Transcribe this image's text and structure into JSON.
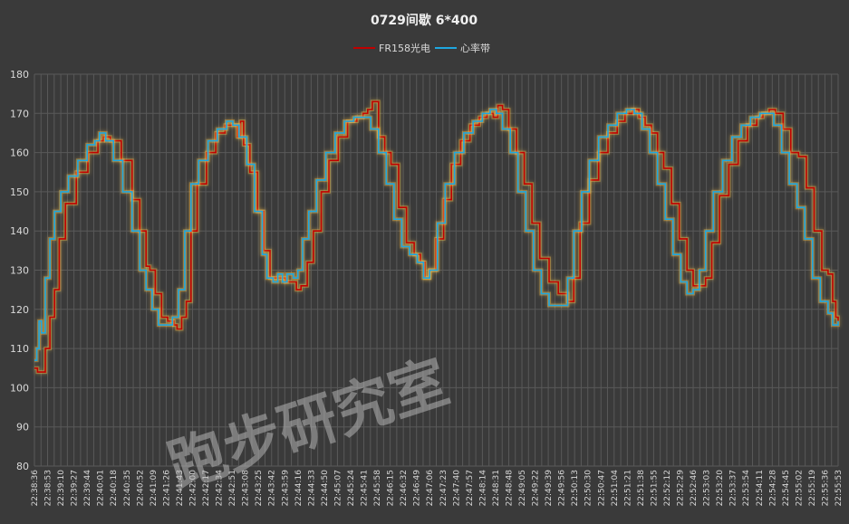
{
  "chart_data": {
    "type": "line",
    "title": "0729间歇 6*400",
    "xlabel": "",
    "ylabel": "",
    "ylim": [
      80,
      180
    ],
    "yticks": [
      80,
      90,
      100,
      110,
      120,
      130,
      140,
      150,
      160,
      170,
      180
    ],
    "grid": true,
    "legend_position": "top-center",
    "watermark": "跑步研究室",
    "x_start": "22:38:36",
    "x_end": "22:55:53",
    "x_tick_step_seconds": 17,
    "x_ticks": [
      "22:38:36",
      "22:38:53",
      "22:39:10",
      "22:39:27",
      "22:39:44",
      "22:40:01",
      "22:40:18",
      "22:40:35",
      "22:40:52",
      "22:41:09",
      "22:41:26",
      "22:41:43",
      "22:42:00",
      "22:42:17",
      "22:42:34",
      "22:42:51",
      "22:43:08",
      "22:43:25",
      "22:43:42",
      "22:43:59",
      "22:44:16",
      "22:44:33",
      "22:44:50",
      "22:45:07",
      "22:45:24",
      "22:45:41",
      "22:45:58",
      "22:46:15",
      "22:46:32",
      "22:46:49",
      "22:47:06",
      "22:47:23",
      "22:47:40",
      "22:47:57",
      "22:48:14",
      "22:48:31",
      "22:48:48",
      "22:49:05",
      "22:49:22",
      "22:49:39",
      "22:49:56",
      "22:50:13",
      "22:50:30",
      "22:50:47",
      "22:51:04",
      "22:51:21",
      "22:51:38",
      "22:51:55",
      "22:52:12",
      "22:52:29",
      "22:52:46",
      "22:53:03",
      "22:53:20",
      "22:53:37",
      "22:53:54",
      "22:54:11",
      "22:54:28",
      "22:54:45",
      "22:55:02",
      "22:55:19",
      "22:55:36",
      "22:55:53"
    ],
    "series": [
      {
        "name": "FR158光电",
        "color": "#c00000",
        "points": [
          [
            "22:38:36",
            105
          ],
          [
            "22:38:40",
            104
          ],
          [
            "22:38:46",
            104
          ],
          [
            "22:38:50",
            110
          ],
          [
            "22:38:56",
            118
          ],
          [
            "22:39:02",
            125
          ],
          [
            "22:39:08",
            138
          ],
          [
            "22:39:16",
            147
          ],
          [
            "22:39:30",
            155
          ],
          [
            "22:39:45",
            160
          ],
          [
            "22:39:58",
            163
          ],
          [
            "22:40:05",
            164
          ],
          [
            "22:40:14",
            163
          ],
          [
            "22:40:28",
            158
          ],
          [
            "22:40:42",
            148
          ],
          [
            "22:40:52",
            140
          ],
          [
            "22:41:00",
            131
          ],
          [
            "22:41:05",
            130
          ],
          [
            "22:41:12",
            124
          ],
          [
            "22:41:20",
            118
          ],
          [
            "22:41:28",
            117
          ],
          [
            "22:41:36",
            116
          ],
          [
            "22:41:40",
            115
          ],
          [
            "22:41:46",
            118
          ],
          [
            "22:41:52",
            122
          ],
          [
            "22:41:58",
            140
          ],
          [
            "22:42:06",
            152
          ],
          [
            "22:42:18",
            160
          ],
          [
            "22:42:30",
            165
          ],
          [
            "22:42:42",
            167
          ],
          [
            "22:42:52",
            167
          ],
          [
            "22:42:58",
            164
          ],
          [
            "22:43:02",
            168
          ],
          [
            "22:43:06",
            162
          ],
          [
            "22:43:14",
            155
          ],
          [
            "22:43:24",
            145
          ],
          [
            "22:43:32",
            135
          ],
          [
            "22:43:40",
            128
          ],
          [
            "22:43:50",
            128
          ],
          [
            "22:44:00",
            127
          ],
          [
            "22:44:08",
            127
          ],
          [
            "22:44:14",
            125
          ],
          [
            "22:44:20",
            126
          ],
          [
            "22:44:28",
            132
          ],
          [
            "22:44:36",
            140
          ],
          [
            "22:44:46",
            150
          ],
          [
            "22:44:56",
            158
          ],
          [
            "22:45:08",
            164
          ],
          [
            "22:45:20",
            168
          ],
          [
            "22:45:32",
            169
          ],
          [
            "22:45:40",
            170
          ],
          [
            "22:45:46",
            171
          ],
          [
            "22:45:52",
            173
          ],
          [
            "22:46:00",
            164
          ],
          [
            "22:46:08",
            160
          ],
          [
            "22:46:16",
            157
          ],
          [
            "22:46:26",
            146
          ],
          [
            "22:46:36",
            137
          ],
          [
            "22:46:46",
            134
          ],
          [
            "22:46:54",
            132
          ],
          [
            "22:47:00",
            128
          ],
          [
            "22:47:06",
            130
          ],
          [
            "22:47:14",
            138
          ],
          [
            "22:47:24",
            148
          ],
          [
            "22:47:34",
            157
          ],
          [
            "22:47:46",
            163
          ],
          [
            "22:47:58",
            167
          ],
          [
            "22:48:10",
            169
          ],
          [
            "22:48:20",
            170
          ],
          [
            "22:48:28",
            169
          ],
          [
            "22:48:34",
            172
          ],
          [
            "22:48:40",
            171
          ],
          [
            "22:48:48",
            166
          ],
          [
            "22:48:58",
            160
          ],
          [
            "22:49:08",
            152
          ],
          [
            "22:49:18",
            142
          ],
          [
            "22:49:28",
            133
          ],
          [
            "22:49:40",
            127
          ],
          [
            "22:49:52",
            124
          ],
          [
            "22:50:04",
            122
          ],
          [
            "22:50:12",
            128
          ],
          [
            "22:50:20",
            142
          ],
          [
            "22:50:32",
            153
          ],
          [
            "22:50:44",
            160
          ],
          [
            "22:50:56",
            165
          ],
          [
            "22:51:08",
            168
          ],
          [
            "22:51:18",
            170
          ],
          [
            "22:51:28",
            171
          ],
          [
            "22:51:36",
            169
          ],
          [
            "22:51:44",
            167
          ],
          [
            "22:51:52",
            165
          ],
          [
            "22:52:00",
            160
          ],
          [
            "22:52:08",
            156
          ],
          [
            "22:52:18",
            147
          ],
          [
            "22:52:28",
            138
          ],
          [
            "22:52:38",
            130
          ],
          [
            "22:52:46",
            126
          ],
          [
            "22:52:54",
            126
          ],
          [
            "22:53:02",
            128
          ],
          [
            "22:53:10",
            137
          ],
          [
            "22:53:20",
            149
          ],
          [
            "22:53:32",
            157
          ],
          [
            "22:53:44",
            163
          ],
          [
            "22:53:56",
            167
          ],
          [
            "22:54:08",
            169
          ],
          [
            "22:54:16",
            170
          ],
          [
            "22:54:24",
            171
          ],
          [
            "22:54:32",
            170
          ],
          [
            "22:54:42",
            166
          ],
          [
            "22:54:52",
            160
          ],
          [
            "22:55:02",
            159
          ],
          [
            "22:55:12",
            151
          ],
          [
            "22:55:22",
            140
          ],
          [
            "22:55:32",
            130
          ],
          [
            "22:55:40",
            129
          ],
          [
            "22:55:46",
            122
          ],
          [
            "22:55:50",
            118
          ],
          [
            "22:55:53",
            117
          ]
        ]
      },
      {
        "name": "心率带",
        "color": "#1ea7e0",
        "points": [
          [
            "22:38:36",
            107
          ],
          [
            "22:38:39",
            110
          ],
          [
            "22:38:42",
            117
          ],
          [
            "22:38:45",
            114
          ],
          [
            "22:38:50",
            128
          ],
          [
            "22:38:56",
            138
          ],
          [
            "22:39:02",
            145
          ],
          [
            "22:39:10",
            150
          ],
          [
            "22:39:20",
            154
          ],
          [
            "22:39:32",
            158
          ],
          [
            "22:39:44",
            162
          ],
          [
            "22:39:54",
            163
          ],
          [
            "22:40:00",
            165
          ],
          [
            "22:40:08",
            163
          ],
          [
            "22:40:18",
            158
          ],
          [
            "22:40:30",
            150
          ],
          [
            "22:40:42",
            140
          ],
          [
            "22:40:52",
            130
          ],
          [
            "22:41:00",
            125
          ],
          [
            "22:41:08",
            120
          ],
          [
            "22:41:16",
            116
          ],
          [
            "22:41:26",
            116
          ],
          [
            "22:41:34",
            118
          ],
          [
            "22:41:42",
            125
          ],
          [
            "22:41:50",
            140
          ],
          [
            "22:41:58",
            152
          ],
          [
            "22:42:08",
            158
          ],
          [
            "22:42:20",
            163
          ],
          [
            "22:42:32",
            166
          ],
          [
            "22:42:44",
            168
          ],
          [
            "22:42:52",
            167
          ],
          [
            "22:43:00",
            164
          ],
          [
            "22:43:10",
            157
          ],
          [
            "22:43:20",
            145
          ],
          [
            "22:43:30",
            134
          ],
          [
            "22:43:36",
            128
          ],
          [
            "22:43:44",
            127
          ],
          [
            "22:43:50",
            129
          ],
          [
            "22:43:56",
            127
          ],
          [
            "22:44:02",
            129
          ],
          [
            "22:44:10",
            128
          ],
          [
            "22:44:16",
            130
          ],
          [
            "22:44:22",
            138
          ],
          [
            "22:44:30",
            145
          ],
          [
            "22:44:40",
            153
          ],
          [
            "22:44:52",
            160
          ],
          [
            "22:45:04",
            165
          ],
          [
            "22:45:16",
            168
          ],
          [
            "22:45:28",
            169
          ],
          [
            "22:45:40",
            169
          ],
          [
            "22:45:50",
            166
          ],
          [
            "22:46:00",
            160
          ],
          [
            "22:46:10",
            152
          ],
          [
            "22:46:20",
            143
          ],
          [
            "22:46:30",
            136
          ],
          [
            "22:46:40",
            134
          ],
          [
            "22:46:50",
            132
          ],
          [
            "22:46:58",
            128
          ],
          [
            "22:47:06",
            130
          ],
          [
            "22:47:16",
            142
          ],
          [
            "22:47:26",
            152
          ],
          [
            "22:47:38",
            160
          ],
          [
            "22:47:50",
            165
          ],
          [
            "22:48:02",
            168
          ],
          [
            "22:48:14",
            170
          ],
          [
            "22:48:24",
            171
          ],
          [
            "22:48:32",
            170
          ],
          [
            "22:48:40",
            166
          ],
          [
            "22:48:50",
            160
          ],
          [
            "22:49:00",
            150
          ],
          [
            "22:49:10",
            140
          ],
          [
            "22:49:20",
            130
          ],
          [
            "22:49:30",
            124
          ],
          [
            "22:49:40",
            121
          ],
          [
            "22:49:50",
            121
          ],
          [
            "22:49:58",
            121
          ],
          [
            "22:50:04",
            128
          ],
          [
            "22:50:12",
            140
          ],
          [
            "22:50:22",
            150
          ],
          [
            "22:50:32",
            158
          ],
          [
            "22:50:44",
            164
          ],
          [
            "22:50:56",
            167
          ],
          [
            "22:51:08",
            170
          ],
          [
            "22:51:20",
            171
          ],
          [
            "22:51:30",
            170
          ],
          [
            "22:51:40",
            166
          ],
          [
            "22:51:50",
            160
          ],
          [
            "22:52:00",
            152
          ],
          [
            "22:52:10",
            143
          ],
          [
            "22:52:20",
            134
          ],
          [
            "22:52:30",
            127
          ],
          [
            "22:52:38",
            124
          ],
          [
            "22:52:46",
            125
          ],
          [
            "22:52:54",
            130
          ],
          [
            "22:53:02",
            140
          ],
          [
            "22:53:12",
            150
          ],
          [
            "22:53:24",
            158
          ],
          [
            "22:53:36",
            164
          ],
          [
            "22:53:48",
            167
          ],
          [
            "22:54:00",
            169
          ],
          [
            "22:54:12",
            170
          ],
          [
            "22:54:20",
            170
          ],
          [
            "22:54:30",
            167
          ],
          [
            "22:54:40",
            160
          ],
          [
            "22:54:50",
            152
          ],
          [
            "22:55:00",
            146
          ],
          [
            "22:55:10",
            138
          ],
          [
            "22:55:20",
            128
          ],
          [
            "22:55:30",
            122
          ],
          [
            "22:55:40",
            119
          ],
          [
            "22:55:46",
            116
          ],
          [
            "22:55:53",
            117
          ]
        ]
      }
    ]
  }
}
